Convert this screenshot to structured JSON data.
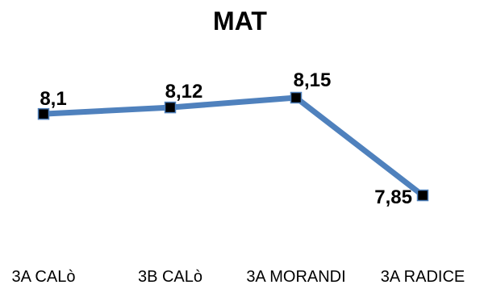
{
  "chart_data": {
    "type": "line",
    "title": "MAT",
    "categories": [
      "3A CALò",
      "3B CALò",
      "3A MORANDI",
      "3A RADICE"
    ],
    "values": [
      8.1,
      8.12,
      8.15,
      7.85
    ],
    "data_labels": [
      "8,1",
      "8,12",
      "8,15",
      "7,85"
    ],
    "xlabel": "",
    "ylabel": "",
    "grid": false,
    "legend": "none",
    "line_color": "#4f81bd",
    "marker_color": "#000000"
  }
}
